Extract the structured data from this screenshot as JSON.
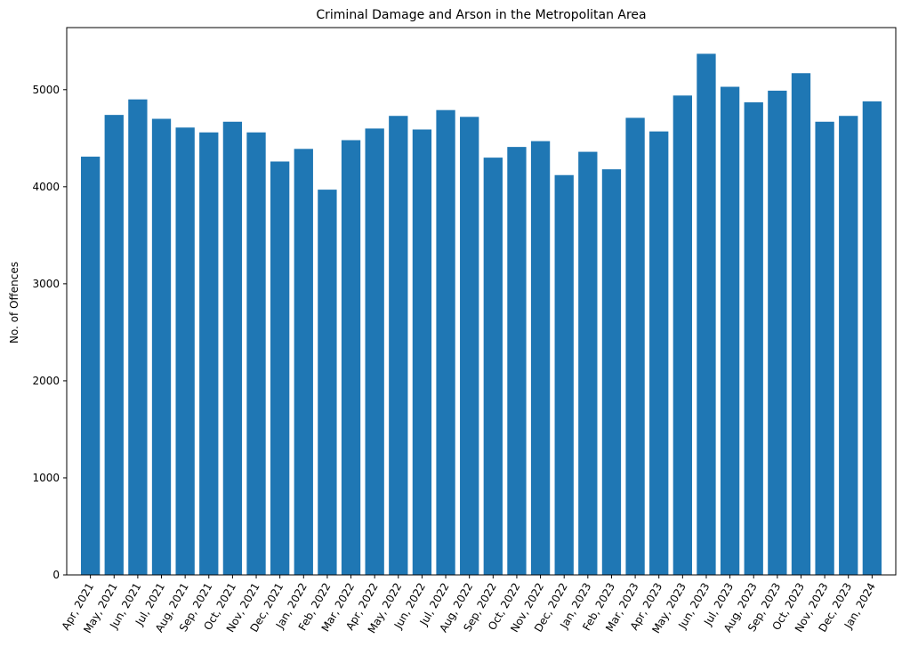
{
  "chart_data": {
    "type": "bar",
    "title": "Criminal Damage and Arson in the Metropolitan Area",
    "xlabel": "",
    "ylabel": "No. of Offences",
    "ylim": [
      0,
      5640
    ],
    "yticks": [
      0,
      1000,
      2000,
      3000,
      4000,
      5000
    ],
    "bar_color": "#1f77b4",
    "grid": false,
    "legend": "none",
    "categories": [
      "Apr, 2021",
      "May, 2021",
      "Jun, 2021",
      "Jul, 2021",
      "Aug, 2021",
      "Sep, 2021",
      "Oct, 2021",
      "Nov, 2021",
      "Dec, 2021",
      "Jan, 2022",
      "Feb, 2022",
      "Mar, 2022",
      "Apr, 2022",
      "May, 2022",
      "Jun, 2022",
      "Jul, 2022",
      "Aug, 2022",
      "Sep, 2022",
      "Oct, 2022",
      "Nov, 2022",
      "Dec, 2022",
      "Jan, 2023",
      "Feb, 2023",
      "Mar, 2023",
      "Apr, 2023",
      "May, 2023",
      "Jun, 2023",
      "Jul, 2023",
      "Aug, 2023",
      "Sep, 2023",
      "Oct, 2023",
      "Nov, 2023",
      "Dec, 2023",
      "Jan, 2024"
    ],
    "values": [
      4310,
      4740,
      4900,
      4700,
      4610,
      4560,
      4670,
      4560,
      4260,
      4390,
      3970,
      4480,
      4600,
      4730,
      4590,
      4790,
      4720,
      4300,
      4410,
      4470,
      4120,
      4360,
      4180,
      4710,
      4570,
      4940,
      5370,
      5030,
      4870,
      4990,
      5170,
      4670,
      4730,
      4880
    ]
  }
}
